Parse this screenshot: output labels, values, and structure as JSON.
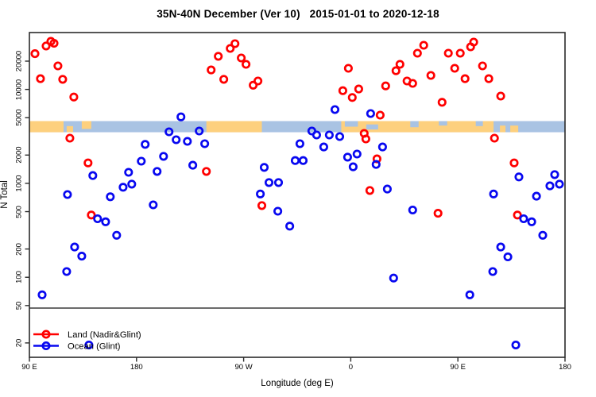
{
  "title": "35N-40N December (Ver 10)   2015-01-01 to 2020-12-18",
  "chart_data": {
    "type": "scatter",
    "title": "35N-40N December (Ver 10)   2015-01-01 to 2020-12-18",
    "xlabel": "Longitude (deg E)",
    "ylabel": "N Total",
    "marker": "open-circle",
    "x_axis": {
      "description": "Longitude unwrapped eastward from 90E to 180 (90E..540E)",
      "range": [
        90,
        540
      ],
      "ticks": [
        {
          "value": 90,
          "label": "90 E"
        },
        {
          "value": 180,
          "label": "180"
        },
        {
          "value": 270,
          "label": "90 W"
        },
        {
          "value": 360,
          "label": "0"
        },
        {
          "value": 450,
          "label": "90 E"
        },
        {
          "value": 540,
          "label": "180"
        }
      ]
    },
    "y_axis": {
      "scale": "log10",
      "ticks": [
        20000,
        10000,
        5000,
        2000,
        1000,
        500,
        200,
        100,
        50,
        20
      ],
      "tick_labels": [
        "20000",
        "10000",
        "5000",
        "2000",
        "1000",
        "500",
        "200",
        "100",
        "50",
        "20"
      ]
    },
    "reference_line_n": 47,
    "land_ocean_strip": {
      "n_range": [
        3500,
        4600
      ],
      "ocean_color": "#a9c3e3",
      "land_color": "#fdd07e",
      "base": "ocean",
      "land_segments": [
        {
          "lon": [
            90,
            118.7
          ],
          "top": 0,
          "h": 1
        },
        {
          "lon": [
            121.3,
            126.7
          ],
          "top": 0.45,
          "h": 0.55
        },
        {
          "lon": [
            134,
            142
          ],
          "top": 0,
          "h": 0.7
        },
        {
          "lon": [
            238.7,
            285.3
          ],
          "top": 0,
          "h": 1
        },
        {
          "lon": [
            352,
            480
          ],
          "top": 0,
          "h": 1
        },
        {
          "lon": [
            485.3,
            490
          ],
          "top": 0.4,
          "h": 0.6
        },
        {
          "lon": [
            494,
            500.7
          ],
          "top": 0.4,
          "h": 0.6
        }
      ],
      "ocean_patches": [
        {
          "lon": [
            355,
            366
          ],
          "top": 0,
          "h": 0.5
        },
        {
          "lon": [
            373,
            383
          ],
          "top": 0.3,
          "h": 0.45
        },
        {
          "lon": [
            410,
            417
          ],
          "top": 0,
          "h": 0.55
        },
        {
          "lon": [
            434,
            441
          ],
          "top": 0,
          "h": 0.4
        },
        {
          "lon": [
            465,
            471
          ],
          "top": 0,
          "h": 0.45
        }
      ]
    },
    "legend": {
      "position": "bottom-left"
    },
    "series": [
      {
        "name": "Land (Nadir&Glint)",
        "color": "#ff0000",
        "points": [
          [
            94.7,
            24000
          ],
          [
            99.3,
            13000
          ],
          [
            104,
            29000
          ],
          [
            108,
            32500
          ],
          [
            110.7,
            31000
          ],
          [
            114,
            17800
          ],
          [
            118,
            12800
          ],
          [
            124,
            3030
          ],
          [
            127.3,
            8300
          ],
          [
            139.3,
            1650
          ],
          [
            142,
            460
          ],
          [
            238.7,
            1340
          ],
          [
            242.7,
            16100
          ],
          [
            248.7,
            22500
          ],
          [
            253.3,
            12800
          ],
          [
            258.7,
            27300
          ],
          [
            262.7,
            30700
          ],
          [
            268,
            21600
          ],
          [
            272,
            18500
          ],
          [
            278,
            11100
          ],
          [
            282,
            12300
          ],
          [
            285.3,
            580
          ],
          [
            353.3,
            9700
          ],
          [
            358,
            16800
          ],
          [
            361.3,
            8200
          ],
          [
            366.7,
            10100
          ],
          [
            371.3,
            3400
          ],
          [
            372.7,
            2970
          ],
          [
            376,
            840
          ],
          [
            382,
            1820
          ],
          [
            384.7,
            5320
          ],
          [
            389.3,
            10900
          ],
          [
            398,
            15800
          ],
          [
            401.3,
            18500
          ],
          [
            407.3,
            12300
          ],
          [
            412,
            11600
          ],
          [
            416,
            24300
          ],
          [
            421.3,
            29500
          ],
          [
            427.3,
            14100
          ],
          [
            433.3,
            480
          ],
          [
            436.7,
            7300
          ],
          [
            442,
            24300
          ],
          [
            447.3,
            16800
          ],
          [
            452,
            24300
          ],
          [
            456,
            13000
          ],
          [
            460.7,
            28400
          ],
          [
            463.3,
            31900
          ],
          [
            470.7,
            17800
          ],
          [
            476,
            13000
          ],
          [
            480.7,
            3030
          ],
          [
            486,
            8500
          ],
          [
            497.3,
            1650
          ],
          [
            500,
            460
          ]
        ]
      },
      {
        "name": "Ocean (Glint)",
        "color": "#0808f0",
        "points": [
          [
            100.7,
            65
          ],
          [
            121.3,
            115
          ],
          [
            122,
            760
          ],
          [
            128,
            210
          ],
          [
            134,
            168
          ],
          [
            140,
            19
          ],
          [
            143.3,
            1210
          ],
          [
            147.3,
            420
          ],
          [
            154,
            390
          ],
          [
            158,
            720
          ],
          [
            163.3,
            280
          ],
          [
            168.7,
            910
          ],
          [
            173.3,
            1310
          ],
          [
            176,
            980
          ],
          [
            184,
            1720
          ],
          [
            187.3,
            2600
          ],
          [
            194,
            590
          ],
          [
            197.3,
            1340
          ],
          [
            202.7,
            1940
          ],
          [
            207.3,
            3540
          ],
          [
            213.3,
            2910
          ],
          [
            217.3,
            5100
          ],
          [
            222.7,
            2800
          ],
          [
            227.3,
            1560
          ],
          [
            232.7,
            3610
          ],
          [
            237.3,
            2640
          ],
          [
            284,
            770
          ],
          [
            287.3,
            1480
          ],
          [
            291.3,
            1020
          ],
          [
            298.7,
            505
          ],
          [
            299.3,
            1020
          ],
          [
            308.7,
            350
          ],
          [
            313.3,
            1750
          ],
          [
            317.3,
            2640
          ],
          [
            320,
            1750
          ],
          [
            327.3,
            3610
          ],
          [
            331.3,
            3270
          ],
          [
            337.3,
            2440
          ],
          [
            342,
            3270
          ],
          [
            346.7,
            6100
          ],
          [
            350.7,
            3150
          ],
          [
            357.3,
            1900
          ],
          [
            362,
            1500
          ],
          [
            365.3,
            2050
          ],
          [
            376.7,
            5530
          ],
          [
            381.3,
            1590
          ],
          [
            386.7,
            2440
          ],
          [
            390.7,
            870
          ],
          [
            396,
            98
          ],
          [
            412,
            520
          ],
          [
            460,
            65
          ],
          [
            479.3,
            115
          ],
          [
            480,
            770
          ],
          [
            486,
            210
          ],
          [
            492,
            165
          ],
          [
            498.7,
            19
          ],
          [
            501.3,
            1170
          ],
          [
            505.3,
            420
          ],
          [
            512,
            390
          ],
          [
            516,
            730
          ],
          [
            521.3,
            280
          ],
          [
            527.3,
            940
          ],
          [
            531.3,
            1240
          ],
          [
            535.3,
            980
          ]
        ]
      }
    ]
  }
}
